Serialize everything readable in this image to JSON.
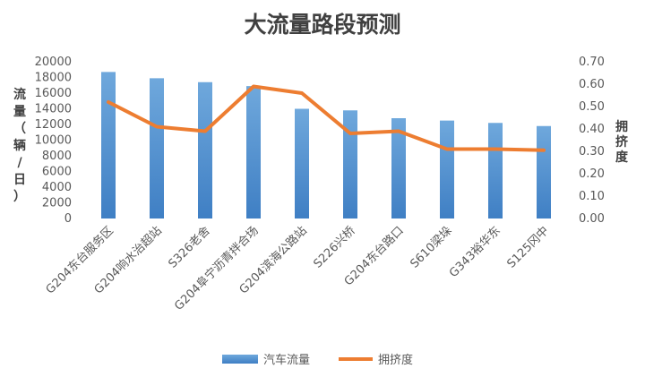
{
  "chart_data": {
    "type": "bar",
    "title": "大流量路段预测",
    "categories": [
      "G204东台服务区",
      "G204响水治超站",
      "S326老舍",
      "G204阜宁沥青拌合场",
      "G204滨海公路站",
      "S226兴桥",
      "G204东台路口",
      "S610梁垛",
      "G343裕华东",
      "S125冈中"
    ],
    "series": [
      {
        "name": "汽车流量",
        "type": "bar",
        "axis": "left",
        "color": "#5B9BD5",
        "values": [
          18700,
          17900,
          17400,
          16900,
          14000,
          13800,
          12800,
          12500,
          12200,
          11800
        ]
      },
      {
        "name": "拥挤度",
        "type": "line",
        "axis": "right",
        "color": "#ED7D31",
        "values": [
          0.52,
          0.41,
          0.39,
          0.59,
          0.56,
          0.38,
          0.39,
          0.31,
          0.31,
          0.305
        ]
      }
    ],
    "ylabel": "流量（辆/日）",
    "y2label": "拥挤度",
    "ylim": [
      0,
      20000
    ],
    "y2lim": [
      0,
      0.7
    ],
    "yticks": [
      "0",
      "2000",
      "4000",
      "6000",
      "8000",
      "10000",
      "12000",
      "14000",
      "16000",
      "18000",
      "20000"
    ],
    "y2ticks": [
      "0.00",
      "0.10",
      "0.20",
      "0.30",
      "0.40",
      "0.50",
      "0.60",
      "0.70"
    ],
    "grid": false,
    "legend_position": "bottom"
  }
}
